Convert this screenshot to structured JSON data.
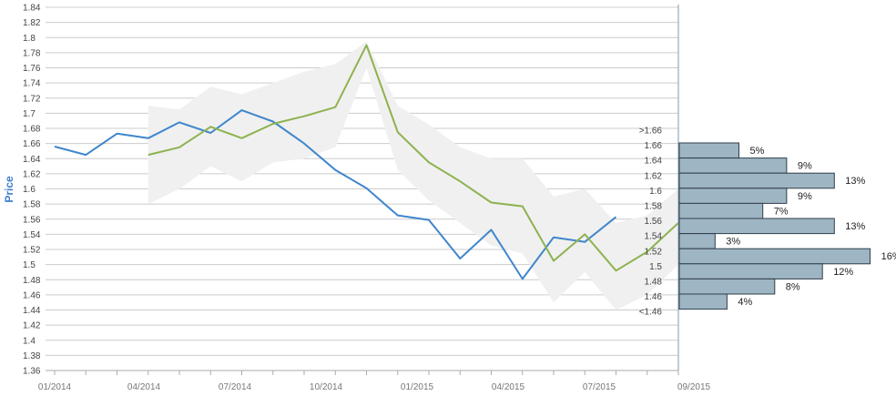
{
  "chart_data": {
    "type": "line",
    "ylabel": "Price",
    "ylim": [
      1.36,
      1.84
    ],
    "yticks": [
      "1.36",
      "1.38",
      "1.4",
      "1.42",
      "1.44",
      "1.46",
      "1.48",
      "1.5",
      "1.52",
      "1.54",
      "1.56",
      "1.58",
      "1.6",
      "1.62",
      "1.64",
      "1.66",
      "1.68",
      "1.7",
      "1.72",
      "1.74",
      "1.76",
      "1.78",
      "1.8",
      "1.82",
      "1.84"
    ],
    "xticks": [
      "01/2014",
      "04/2014",
      "07/2014",
      "10/2014",
      "01/2015",
      "04/2015",
      "07/2015",
      "09/2015"
    ],
    "xlim": [
      "2014-01",
      "2015-09"
    ],
    "grid": true,
    "series": [
      {
        "key": "blue",
        "color": "#3f86cc",
        "x": [
          "2014-01",
          "2014-02",
          "2014-03",
          "2014-04",
          "2014-05",
          "2014-06",
          "2014-07",
          "2014-08",
          "2014-09",
          "2014-10",
          "2014-11",
          "2014-12",
          "2015-01",
          "2015-02",
          "2015-03",
          "2015-04",
          "2015-05",
          "2015-06",
          "2015-07"
        ],
        "values": [
          1.656,
          1.645,
          1.673,
          1.667,
          1.688,
          1.674,
          1.704,
          1.689,
          1.66,
          1.625,
          1.601,
          1.565,
          1.559,
          1.508,
          1.546,
          1.481,
          1.536,
          1.53,
          1.563
        ]
      },
      {
        "key": "green",
        "color": "#8db24f",
        "x": [
          "2014-04",
          "2014-05",
          "2014-06",
          "2014-07",
          "2014-08",
          "2014-09",
          "2014-10",
          "2014-11",
          "2014-12",
          "2015-01",
          "2015-02",
          "2015-03",
          "2015-04",
          "2015-05",
          "2015-06",
          "2015-07",
          "2015-08",
          "2015-09"
        ],
        "values": [
          1.645,
          1.655,
          1.682,
          1.667,
          1.686,
          1.696,
          1.708,
          1.79,
          1.675,
          1.635,
          1.61,
          1.582,
          1.577,
          1.505,
          1.54,
          1.492,
          1.517,
          1.555
        ]
      }
    ],
    "band": {
      "color": "#f0f0f0",
      "x": [
        "2014-04",
        "2014-05",
        "2014-06",
        "2014-07",
        "2014-08",
        "2014-09",
        "2014-10",
        "2014-11",
        "2014-12",
        "2015-01",
        "2015-02",
        "2015-03",
        "2015-04",
        "2015-05",
        "2015-06",
        "2015-07",
        "2015-08",
        "2015-09"
      ],
      "upper": [
        1.71,
        1.705,
        1.735,
        1.725,
        1.74,
        1.755,
        1.765,
        1.795,
        1.71,
        1.685,
        1.655,
        1.64,
        1.64,
        1.59,
        1.6,
        1.555,
        1.565,
        1.6
      ],
      "lower": [
        1.58,
        1.6,
        1.63,
        1.61,
        1.635,
        1.64,
        1.655,
        1.76,
        1.625,
        1.585,
        1.555,
        1.525,
        1.515,
        1.45,
        1.49,
        1.44,
        1.46,
        1.5
      ]
    },
    "histogram": {
      "color": "#9eb5c4",
      "bins": [
        {
          "label": ">1.66",
          "percent": 5,
          "text": "5%"
        },
        {
          "label": "1.66",
          "percent": 9,
          "text": "9%"
        },
        {
          "label": "1.64",
          "percent": 13,
          "text": "13%"
        },
        {
          "label": "1.62",
          "percent": 9,
          "text": "9%"
        },
        {
          "label": "1.6",
          "percent": 7,
          "text": "7%"
        },
        {
          "label": "1.58",
          "percent": 13,
          "text": "13%"
        },
        {
          "label": "1.56",
          "percent": 3,
          "text": "3%"
        },
        {
          "label": "1.54",
          "percent": 16,
          "text": "16%"
        },
        {
          "label": "1.52",
          "percent": 12,
          "text": "12%"
        },
        {
          "label": "1.5",
          "percent": 8,
          "text": "8%"
        },
        {
          "label": "1.48",
          "percent": 4,
          "text": "4%"
        }
      ],
      "extra_labels": [
        "1.46",
        "<1.46"
      ]
    }
  }
}
